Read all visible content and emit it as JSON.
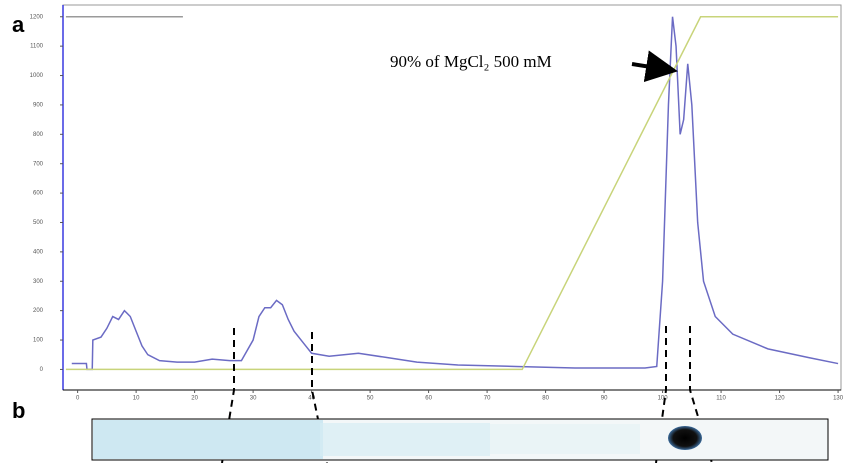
{
  "panel_labels": [
    "a",
    "b"
  ],
  "chart_data": {
    "type": "line",
    "annotation": "90% of MgCl₂ 500 mM",
    "xlim": [
      -2.5,
      130.5
    ],
    "xticks": [
      0,
      10,
      20,
      30,
      40,
      50,
      60,
      70,
      80,
      90,
      100,
      110,
      120,
      130
    ],
    "ylim": [
      -70,
      1240
    ],
    "yticks": [
      0,
      100,
      200,
      300,
      400,
      500,
      600,
      700,
      800,
      900,
      1000,
      1100,
      1200
    ],
    "grid": false,
    "series": [
      {
        "color": "#6b6bc4",
        "x": [
          -1,
          1.5,
          1.6,
          2.5,
          2.6,
          4,
          5,
          6,
          7,
          8,
          9,
          10,
          11,
          12,
          14,
          17,
          20,
          23,
          26,
          28,
          30,
          31,
          32,
          33,
          34,
          35,
          36,
          37,
          39,
          40,
          43,
          48,
          53,
          58,
          65,
          75,
          85,
          97,
          99,
          100,
          101,
          101.7,
          102.3,
          103,
          103.6,
          104.3,
          105,
          106,
          107,
          109,
          112,
          118,
          125,
          130
        ],
        "values": [
          20,
          20,
          0,
          0,
          100,
          110,
          140,
          180,
          170,
          200,
          180,
          130,
          80,
          50,
          30,
          25,
          25,
          35,
          30,
          30,
          100,
          180,
          210,
          210,
          235,
          220,
          170,
          130,
          80,
          55,
          45,
          55,
          40,
          25,
          15,
          10,
          5,
          5,
          10,
          300,
          900,
          1200,
          1100,
          800,
          850,
          1040,
          900,
          500,
          300,
          180,
          120,
          70,
          40,
          20
        ]
      },
      {
        "color": "#c8d47a",
        "x": [
          -2,
          76,
          106.5,
          130
        ],
        "values": [
          0,
          0,
          1200,
          1200
        ]
      },
      {
        "color": "#9a9a9a",
        "x": [
          -2,
          18
        ],
        "values": [
          1200,
          1200
        ]
      }
    ]
  }
}
